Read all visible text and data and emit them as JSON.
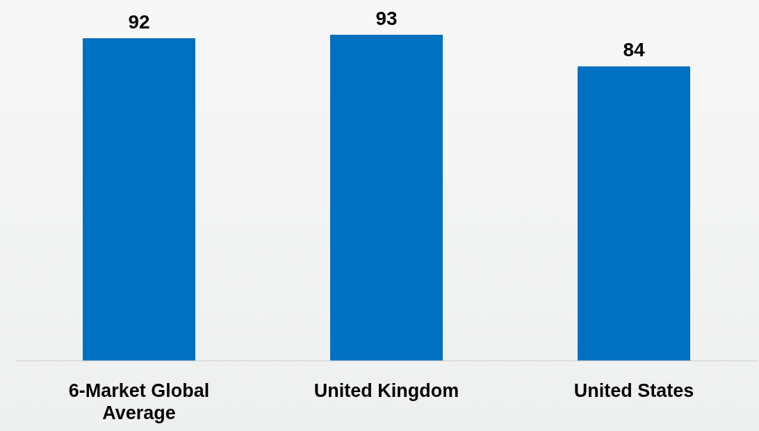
{
  "chart_data": {
    "type": "bar",
    "categories": [
      "6-Market Global Average",
      "United Kingdom",
      "United States"
    ],
    "values": [
      92,
      93,
      84
    ],
    "color": "#0070c0",
    "data_labels": true
  }
}
